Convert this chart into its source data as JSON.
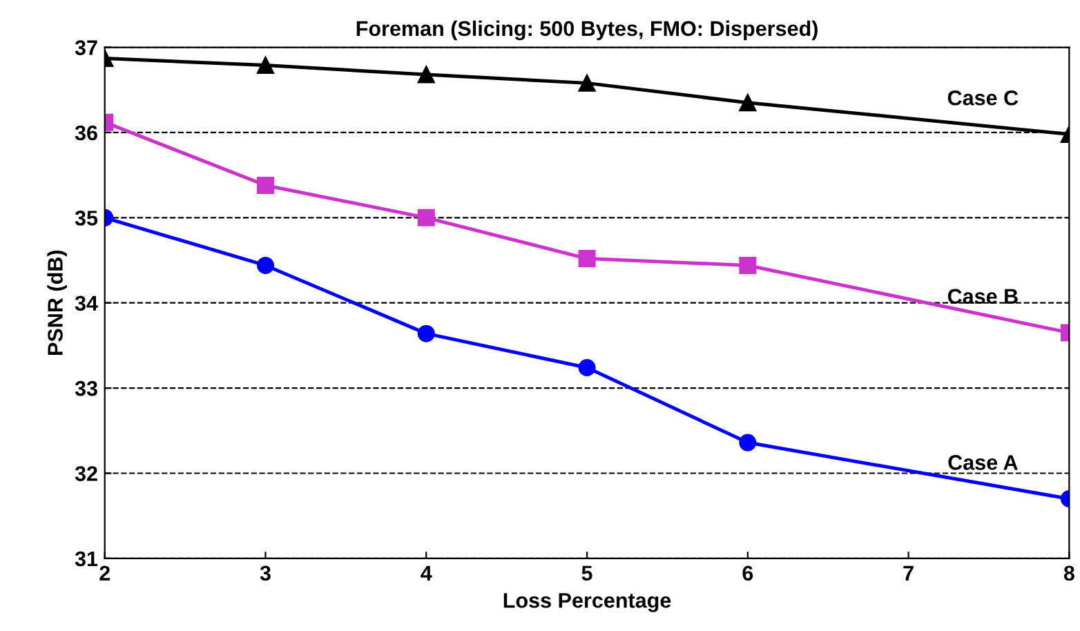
{
  "chart_data": {
    "type": "line",
    "title": "Foreman (Slicing: 500 Bytes, FMO: Dispersed)",
    "xlabel": "Loss Percentage",
    "ylabel": "PSNR (dB)",
    "x": [
      2,
      3,
      4,
      5,
      6,
      8
    ],
    "series": [
      {
        "name": "Case A",
        "color": "#0000ff",
        "marker": "circle",
        "values": [
          35.0,
          34.44,
          33.64,
          33.24,
          32.36,
          31.7
        ]
      },
      {
        "name": "Case B",
        "color": "#cc33cc",
        "marker": "square",
        "values": [
          36.12,
          35.38,
          35.0,
          34.52,
          34.44,
          33.65
        ]
      },
      {
        "name": "Case C",
        "color": "#000000",
        "marker": "triangle",
        "values": [
          36.87,
          36.79,
          36.68,
          36.58,
          36.35,
          35.98
        ]
      }
    ],
    "xlim": [
      2,
      8
    ],
    "xticks": [
      2,
      3,
      4,
      5,
      6,
      7,
      8
    ],
    "ylim": [
      31,
      37
    ],
    "yticks": [
      31,
      32,
      33,
      34,
      35,
      36,
      37
    ],
    "grid": "y",
    "line_style": "solid"
  }
}
